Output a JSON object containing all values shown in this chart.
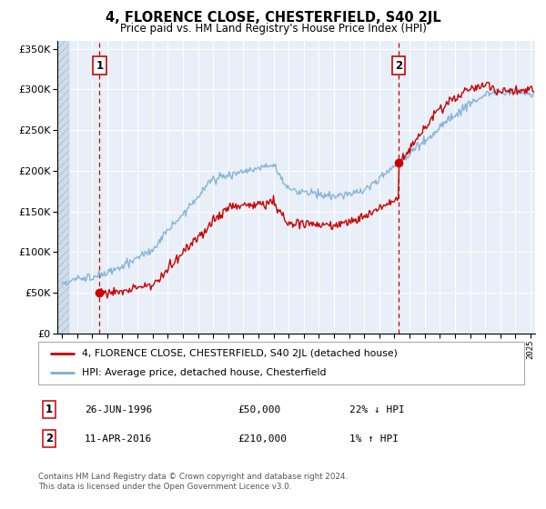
{
  "title": "4, FLORENCE CLOSE, CHESTERFIELD, S40 2JL",
  "subtitle": "Price paid vs. HM Land Registry's House Price Index (HPI)",
  "legend_line1": "4, FLORENCE CLOSE, CHESTERFIELD, S40 2JL (detached house)",
  "legend_line2": "HPI: Average price, detached house, Chesterfield",
  "footer": "Contains HM Land Registry data © Crown copyright and database right 2024.\nThis data is licensed under the Open Government Licence v3.0.",
  "sale1_date": "26-JUN-1996",
  "sale1_price": "£50,000",
  "sale1_hpi": "22% ↓ HPI",
  "sale2_date": "11-APR-2016",
  "sale2_price": "£210,000",
  "sale2_hpi": "1% ↑ HPI",
  "sale1_year": 1996.49,
  "sale2_year": 2016.27,
  "sale1_value": 50000,
  "sale2_value": 210000,
  "ylim": [
    0,
    360000
  ],
  "xlim_start": 1993.7,
  "xlim_end": 2025.3,
  "hatch_end": 1994.5,
  "bg_color": "#e8eff8",
  "red_color": "#cc0000",
  "blue_color": "#7bafd4",
  "grid_color": "#ffffff"
}
